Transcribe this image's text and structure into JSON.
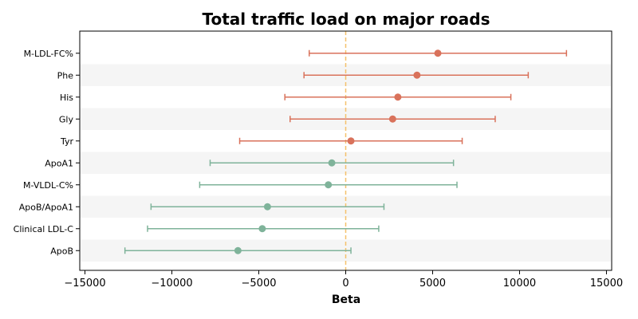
{
  "chart_data": {
    "type": "forest",
    "title": "Total traffic load on major roads",
    "xlabel": "Beta",
    "ylabel": "",
    "xlim": [
      -15300,
      15300
    ],
    "xticks": [
      -15000,
      -10000,
      -5000,
      0,
      5000,
      10000,
      15000
    ],
    "xtick_labels": [
      "−15000",
      "−10000",
      "−5000",
      "0",
      "5000",
      "10000",
      "15000"
    ],
    "reference_line": 0,
    "reference_color": "#f5c16c",
    "positive_color": "#d9725b",
    "negative_color": "#7fb39a",
    "grid": false,
    "row_banding": true,
    "points": [
      {
        "label": "M-LDL-FC%",
        "beta": 5300,
        "ci_low": -2100,
        "ci_high": 12700
      },
      {
        "label": "Phe",
        "beta": 4100,
        "ci_low": -2400,
        "ci_high": 10500
      },
      {
        "label": "His",
        "beta": 3000,
        "ci_low": -3500,
        "ci_high": 9500
      },
      {
        "label": "Gly",
        "beta": 2700,
        "ci_low": -3200,
        "ci_high": 8600
      },
      {
        "label": "Tyr",
        "beta": 300,
        "ci_low": -6100,
        "ci_high": 6700
      },
      {
        "label": "ApoA1",
        "beta": -800,
        "ci_low": -7800,
        "ci_high": 6200
      },
      {
        "label": "M-VLDL-C%",
        "beta": -1000,
        "ci_low": -8400,
        "ci_high": 6400
      },
      {
        "label": "ApoB/ApoA1",
        "beta": -4500,
        "ci_low": -11200,
        "ci_high": 2200
      },
      {
        "label": "Clinical LDL-C",
        "beta": -4800,
        "ci_low": -11400,
        "ci_high": 1900
      },
      {
        "label": "ApoB",
        "beta": -6200,
        "ci_low": -12700,
        "ci_high": 300
      }
    ]
  }
}
